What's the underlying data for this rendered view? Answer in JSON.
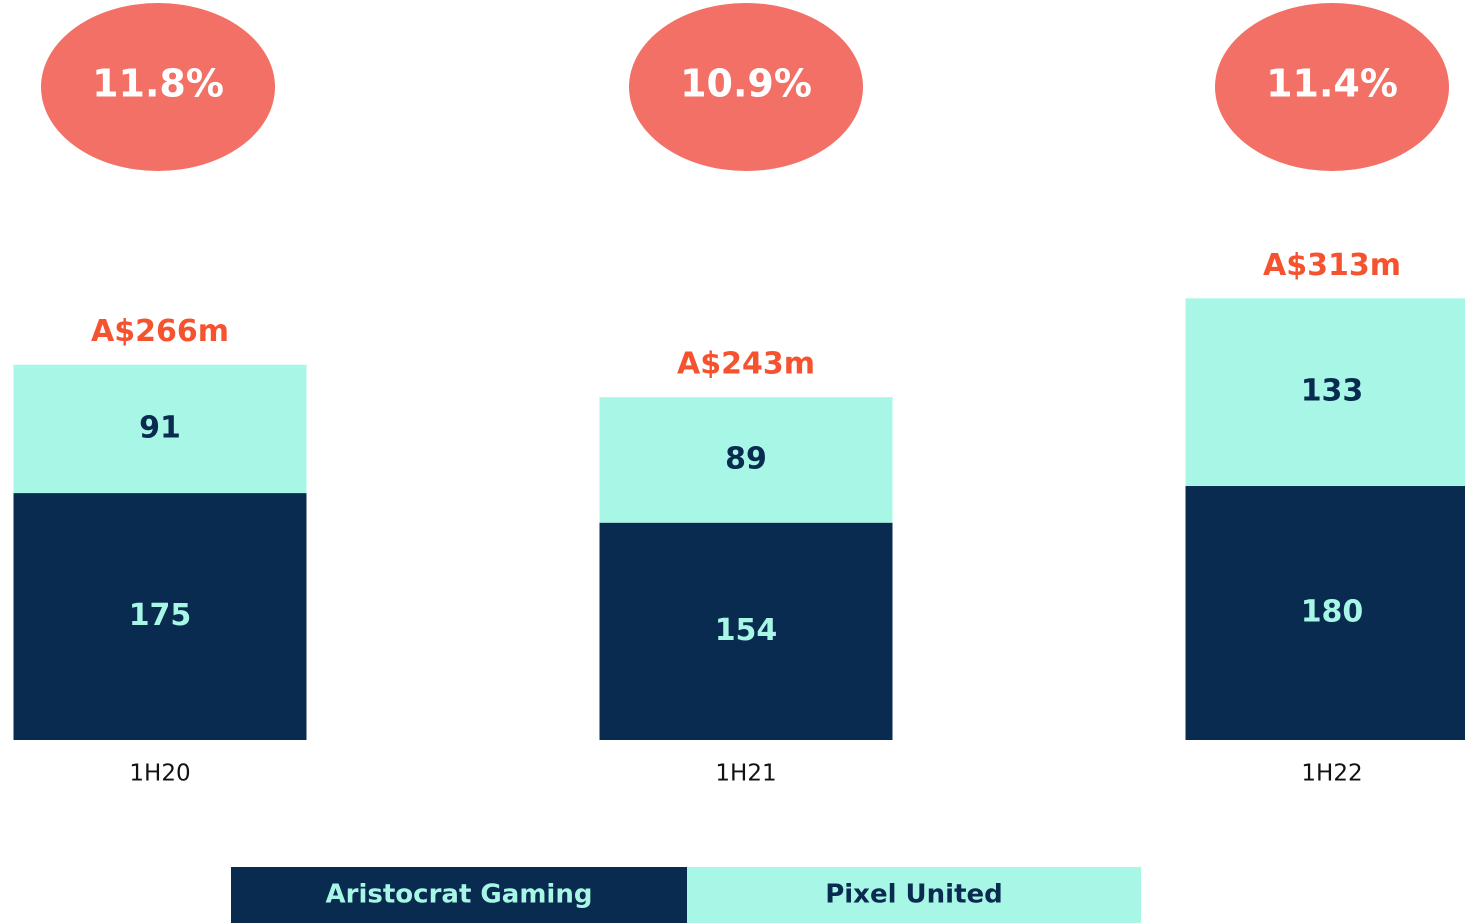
{
  "chart_data": {
    "type": "stacked_bar",
    "categories": [
      "1H20",
      "1H21",
      "1H22"
    ],
    "series": [
      {
        "name": "Aristocrat Gaming",
        "color": "#082b4f",
        "values": [
          175,
          154,
          180
        ]
      },
      {
        "name": "Pixel United",
        "color": "#a8f7e6",
        "values": [
          91,
          89,
          133
        ]
      }
    ],
    "total_labels": [
      "A$266m",
      "A$243m",
      "A$313m"
    ],
    "annotations": [
      "11.8%",
      "10.9%",
      "11.4%"
    ],
    "annotation_color": "#f27066",
    "total_label_color": "#f5532f"
  }
}
